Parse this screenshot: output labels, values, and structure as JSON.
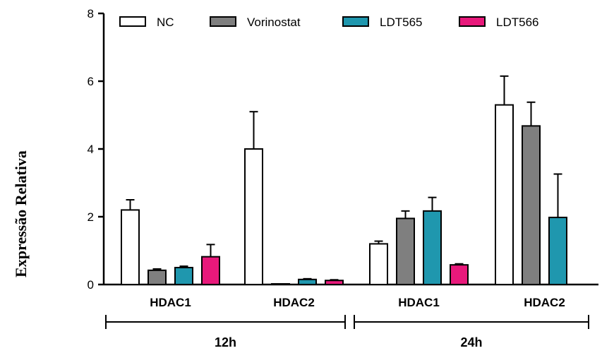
{
  "chart_data": {
    "type": "bar",
    "ylabel": "Expressão Relativa",
    "ylim": [
      0,
      8
    ],
    "yticks": [
      "0",
      "2",
      "4",
      "6",
      "8"
    ],
    "legend_position": "top",
    "groups": [
      {
        "label": "HDAC1",
        "time": "12h"
      },
      {
        "label": "HDAC2",
        "time": "12h"
      },
      {
        "label": "HDAC1",
        "time": "24h"
      },
      {
        "label": "HDAC2",
        "time": "24h"
      }
    ],
    "time_labels": [
      "12h",
      "24h"
    ],
    "series": [
      {
        "name": "NC",
        "color": "#ffffff",
        "values": [
          2.2,
          4.0,
          1.2,
          5.3
        ],
        "errors": [
          0.3,
          1.1,
          0.08,
          0.85
        ]
      },
      {
        "name": "Vorinostat",
        "color": "#7f7f7f",
        "values": [
          0.42,
          0.02,
          1.95,
          4.68
        ],
        "errors": [
          0.04,
          0.0,
          0.22,
          0.7
        ]
      },
      {
        "name": "LDT565",
        "color": "#1f97ae",
        "values": [
          0.5,
          0.15,
          2.17,
          1.98
        ],
        "errors": [
          0.04,
          0.02,
          0.4,
          1.28
        ]
      },
      {
        "name": "LDT566",
        "color": "#e8197b",
        "values": [
          0.82,
          0.12,
          0.58,
          null
        ],
        "errors": [
          0.36,
          0.02,
          0.03,
          null
        ]
      }
    ]
  }
}
